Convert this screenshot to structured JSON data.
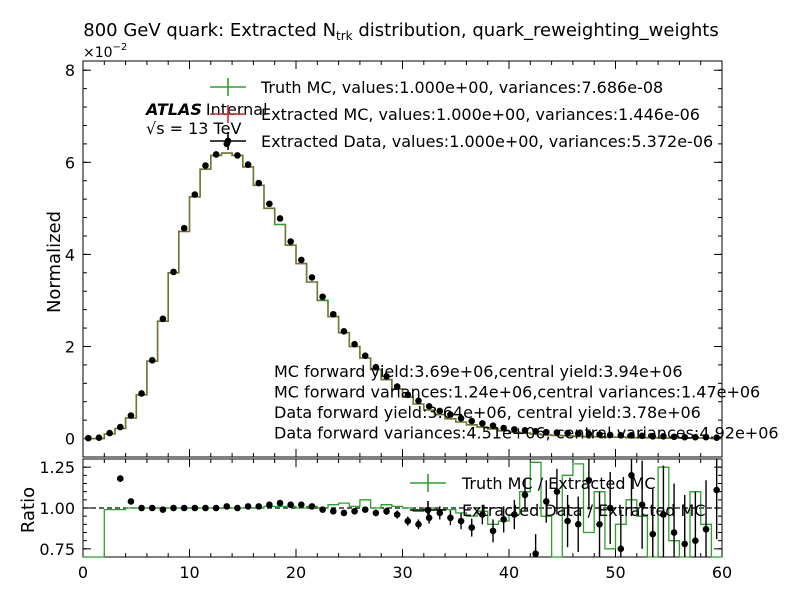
{
  "chart_data": {
    "type": "histogram",
    "title_main": "800 GeV quark: Extracted N",
    "title_sub": "trk",
    "title_rest": " distribution, quark_reweighting_weights",
    "atlas_label": "ATLAS",
    "atlas_status": "Internal",
    "energy_label": "√s = 13 TeV",
    "top": {
      "ylabel": "Normalized",
      "y_multiplier_base": "×10",
      "y_multiplier_exp": "−2",
      "ylim": [
        -0.4,
        8.2
      ],
      "yticks": [
        0,
        2,
        4,
        6,
        8
      ],
      "ytick_labels": [
        "0",
        "2",
        "4",
        "6",
        "8"
      ],
      "legend": [
        {
          "label": "Truth MC, values:1.000e+00, variances:7.686e-08",
          "color": "#2ca02c"
        },
        {
          "label": "Extracted MC, values:1.000e+00, variances:1.446e-06",
          "color": "#d62728"
        },
        {
          "label": "Extracted Data, values:1.000e+00, variances:5.372e-06",
          "color": "#000000"
        }
      ],
      "annotations": [
        "MC forward yield:3.69e+06,central yield:3.94e+06",
        "MC forward variances:1.24e+06,central variances:1.47e+06",
        "Data forward yield:3.64e+06, central yield:3.78e+06",
        "Data forward variances:4.51e+06, central variances:4.92e+06"
      ],
      "x": [
        0,
        1,
        2,
        3,
        4,
        5,
        6,
        7,
        8,
        9,
        10,
        11,
        12,
        13,
        14,
        15,
        16,
        17,
        18,
        19,
        20,
        21,
        22,
        23,
        24,
        25,
        26,
        27,
        28,
        29,
        30,
        31,
        32,
        33,
        34,
        35,
        36,
        37,
        38,
        39,
        40,
        41,
        42,
        43,
        44,
        45,
        46,
        47,
        48,
        49,
        50,
        51,
        52,
        53,
        54,
        55,
        56,
        57,
        58,
        59
      ],
      "mc_values": [
        0,
        0,
        0.1,
        0.22,
        0.45,
        0.95,
        1.68,
        2.55,
        3.6,
        4.5,
        5.25,
        5.85,
        6.15,
        6.2,
        6.15,
        5.9,
        5.5,
        5.0,
        4.65,
        4.2,
        3.8,
        3.4,
        3.0,
        2.65,
        2.3,
        2.0,
        1.75,
        1.5,
        1.28,
        1.08,
        0.9,
        0.75,
        0.62,
        0.52,
        0.43,
        0.36,
        0.3,
        0.25,
        0.21,
        0.17,
        0.14,
        0.12,
        0.1,
        0.08,
        0.07,
        0.06,
        0.05,
        0.04,
        0.04,
        0.03,
        0.03,
        0.02,
        0.02,
        0.02,
        0.01,
        0.01,
        0.01,
        0.01,
        0.01,
        0.0
      ],
      "data_values": [
        0.01,
        0.02,
        0.12,
        0.25,
        0.5,
        0.98,
        1.7,
        2.6,
        3.62,
        4.57,
        5.3,
        5.93,
        6.17,
        6.4,
        6.15,
        5.95,
        5.55,
        5.1,
        4.78,
        4.28,
        3.88,
        3.5,
        3.08,
        2.7,
        2.33,
        2.05,
        1.8,
        1.55,
        1.35,
        1.13,
        0.95,
        0.82,
        0.7,
        0.6,
        0.52,
        0.44,
        0.38,
        0.33,
        0.28,
        0.23,
        0.2,
        0.18,
        0.16,
        0.14,
        0.13,
        0.12,
        0.11,
        0.1,
        0.09,
        0.08,
        0.07,
        0.07,
        0.06,
        0.05,
        0.05,
        0.04,
        0.03,
        0.03,
        0.03,
        0.02
      ]
    },
    "bottom": {
      "ylabel": "Ratio",
      "xlim": [
        0,
        60
      ],
      "ylim": [
        0.7,
        1.3
      ],
      "yticks": [
        0.75,
        1.0,
        1.25
      ],
      "ytick_labels": [
        "0.75",
        "1.00",
        "1.25"
      ],
      "xticks": [
        0,
        10,
        20,
        30,
        40,
        50,
        60
      ],
      "xtick_labels": [
        "0",
        "10",
        "20",
        "30",
        "40",
        "50",
        "60"
      ],
      "legend": [
        {
          "label": "Truth MC / Extracted MC",
          "color": "#2ca02c"
        },
        {
          "label": "Extracted Data / Extracted MC",
          "color": "#000000"
        }
      ],
      "ratio_truth": [
        0.0,
        0.0,
        0.99,
        0.99,
        1.0,
        1.0,
        1.0,
        1.0,
        1.0,
        1.0,
        1.0,
        1.0,
        1.0,
        1.0,
        1.0,
        1.0,
        1.0,
        1.01,
        1.01,
        1.01,
        1.0,
        1.01,
        1.0,
        1.02,
        1.03,
        1.01,
        1.05,
        1.0,
        1.02,
        1.01,
        1.0,
        0.98,
        1.0,
        0.99,
        0.99,
        0.97,
        0.95,
        0.98,
        0.9,
        0.92,
        0.96,
        1.1,
        1.28,
        0.95,
        0.7,
        1.2,
        1.27,
        0.85,
        1.1,
        0.75,
        0.9,
        1.05,
        0.95,
        0.7,
        1.25,
        0.8,
        0.7,
        1.1,
        0.9,
        0.7
      ],
      "ratio_data": [
        0.0,
        0.0,
        0.0,
        1.18,
        1.04,
        1.0,
        1.0,
        0.99,
        1.0,
        1.0,
        1.0,
        1.0,
        1.0,
        1.01,
        1.0,
        1.01,
        1.01,
        1.02,
        1.03,
        1.02,
        1.02,
        1.01,
        0.99,
        0.98,
        0.97,
        0.98,
        0.99,
        0.97,
        0.98,
        0.96,
        0.92,
        0.9,
        0.94,
        0.97,
        0.94,
        0.92,
        0.88,
        0.96,
        0.86,
        0.93,
        0.96,
        1.08,
        0.72,
        1.04,
        1.1,
        0.92,
        0.9,
        1.17,
        0.9,
        1.0,
        0.75,
        1.2,
        1.02,
        0.84,
        0.96,
        0.85,
        0.78,
        0.8,
        0.87,
        1.11
      ],
      "ratio_data_err": [
        0,
        0,
        0,
        0.02,
        0.015,
        0.008,
        0.006,
        0.005,
        0.005,
        0.005,
        0.005,
        0.005,
        0.005,
        0.005,
        0.005,
        0.005,
        0.006,
        0.006,
        0.007,
        0.007,
        0.008,
        0.009,
        0.01,
        0.012,
        0.013,
        0.015,
        0.017,
        0.02,
        0.022,
        0.025,
        0.028,
        0.03,
        0.035,
        0.04,
        0.045,
        0.05,
        0.055,
        0.06,
        0.07,
        0.08,
        0.09,
        0.1,
        0.12,
        0.13,
        0.14,
        0.16,
        0.17,
        0.18,
        0.2,
        0.22,
        0.24,
        0.25,
        0.27,
        0.28,
        0.3,
        0.3,
        0.3,
        0.3,
        0.3,
        0.3
      ]
    }
  }
}
